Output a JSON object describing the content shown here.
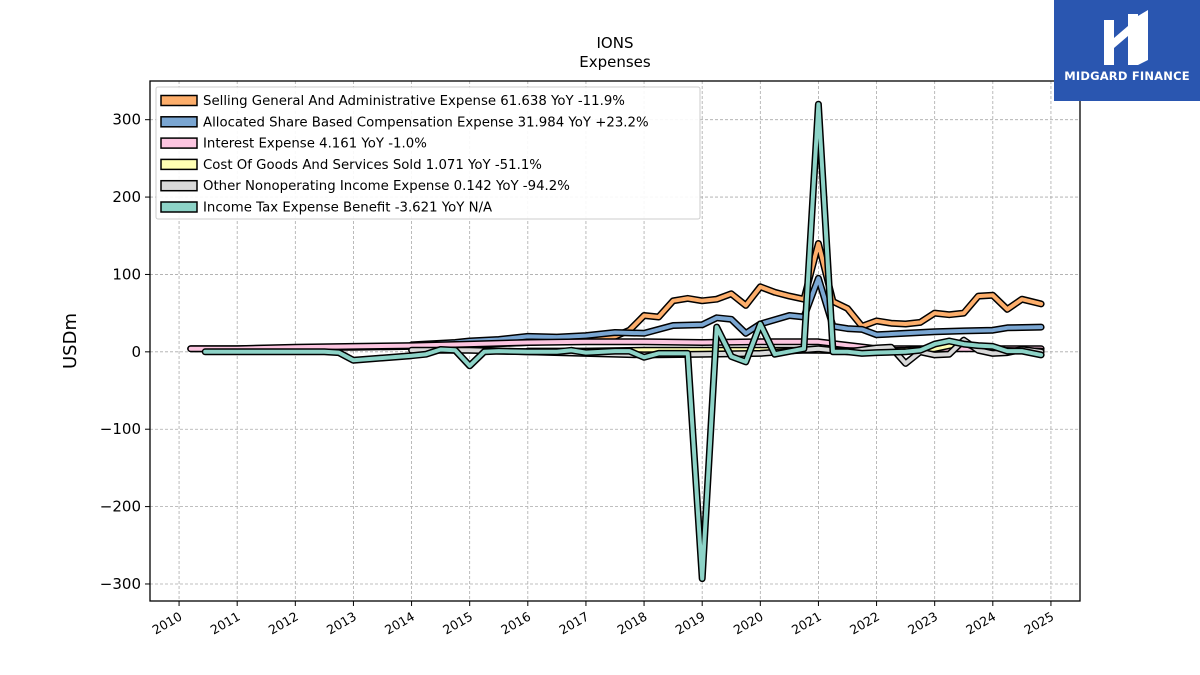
{
  "title": "IONS",
  "subtitle": "Expenses",
  "logo": {
    "text": "MIDGARD FINANCE",
    "color": "#2a56b0"
  },
  "chart_data": {
    "type": "line",
    "xlabel": "",
    "ylabel": "USDm",
    "xlim": [
      2009.5,
      2025.5
    ],
    "ylim": [
      -322,
      350
    ],
    "x_ticks": [
      "2010",
      "2011",
      "2012",
      "2013",
      "2014",
      "2015",
      "2016",
      "2017",
      "2018",
      "2019",
      "2020",
      "2021",
      "2022",
      "2023",
      "2024",
      "2025"
    ],
    "y_ticks": [
      -300,
      -200,
      -100,
      0,
      100,
      200,
      300
    ],
    "y_tick_labels": [
      "−300",
      "−200",
      "−100",
      "0",
      "100",
      "200",
      "300"
    ],
    "grid": true,
    "legend_position": "top-left",
    "series": [
      {
        "name": "Selling General And Administrative Expense",
        "legend": "Selling General And Administrative Expense  61.638 YoY -11.9%",
        "color": "#fdae6b",
        "points": [
          [
            2010.2,
            4
          ],
          [
            2011,
            4
          ],
          [
            2012,
            5
          ],
          [
            2012.75,
            6
          ],
          [
            2013,
            6
          ],
          [
            2014,
            7
          ],
          [
            2015,
            9
          ],
          [
            2016,
            12
          ],
          [
            2017,
            15
          ],
          [
            2017.5,
            20
          ],
          [
            2017.75,
            28
          ],
          [
            2018,
            47
          ],
          [
            2018.25,
            45
          ],
          [
            2018.5,
            66
          ],
          [
            2018.75,
            69
          ],
          [
            2019,
            66
          ],
          [
            2019.25,
            68
          ],
          [
            2019.5,
            75
          ],
          [
            2019.75,
            60
          ],
          [
            2020,
            84
          ],
          [
            2020.25,
            77
          ],
          [
            2020.5,
            72
          ],
          [
            2020.75,
            68
          ],
          [
            2021,
            140
          ],
          [
            2021.25,
            65
          ],
          [
            2021.5,
            56
          ],
          [
            2021.75,
            33
          ],
          [
            2022,
            40
          ],
          [
            2022.25,
            37
          ],
          [
            2022.5,
            36
          ],
          [
            2022.75,
            38
          ],
          [
            2023,
            50
          ],
          [
            2023.25,
            48
          ],
          [
            2023.5,
            50
          ],
          [
            2023.75,
            72
          ],
          [
            2024,
            73
          ],
          [
            2024.25,
            55
          ],
          [
            2024.5,
            68
          ],
          [
            2024.83,
            62
          ]
        ]
      },
      {
        "name": "Allocated Share Based Compensation Expense",
        "legend": "Allocated Share Based Compensation Expense  31.984 YoY +23.2%",
        "color": "#7aa6d2",
        "points": [
          [
            2014,
            9
          ],
          [
            2014.75,
            12
          ],
          [
            2015,
            14
          ],
          [
            2015.5,
            16
          ],
          [
            2016,
            20
          ],
          [
            2016.5,
            19
          ],
          [
            2017,
            21
          ],
          [
            2017.5,
            25
          ],
          [
            2018,
            24
          ],
          [
            2018.5,
            34
          ],
          [
            2019,
            35
          ],
          [
            2019.25,
            44
          ],
          [
            2019.5,
            42
          ],
          [
            2019.75,
            24
          ],
          [
            2020,
            36
          ],
          [
            2020.5,
            47
          ],
          [
            2020.75,
            45
          ],
          [
            2021,
            95
          ],
          [
            2021.25,
            33
          ],
          [
            2021.5,
            30
          ],
          [
            2021.75,
            29
          ],
          [
            2022,
            22
          ],
          [
            2022.5,
            24
          ],
          [
            2022.75,
            25
          ],
          [
            2023,
            26
          ],
          [
            2023.5,
            27
          ],
          [
            2024,
            28
          ],
          [
            2024.25,
            31
          ],
          [
            2024.83,
            32
          ]
        ]
      },
      {
        "name": "Interest Expense",
        "legend": "Interest Expense  4.161 YoY -1.0%",
        "color": "#fcc5e0",
        "points": [
          [
            2010.2,
            4
          ],
          [
            2011,
            4
          ],
          [
            2012,
            6
          ],
          [
            2013,
            7
          ],
          [
            2014,
            8
          ],
          [
            2015,
            10
          ],
          [
            2016,
            12
          ],
          [
            2017,
            13
          ],
          [
            2018,
            13
          ],
          [
            2019,
            12
          ],
          [
            2020,
            13
          ],
          [
            2021,
            13
          ],
          [
            2022,
            4
          ],
          [
            2023,
            4
          ],
          [
            2024,
            4
          ],
          [
            2024.83,
            4
          ]
        ]
      },
      {
        "name": "Cost Of Goods And Services Sold",
        "legend": "Cost Of Goods And Services Sold  1.071 YoY -51.1%",
        "color": "#ffffb3",
        "points": [
          [
            2016,
            1
          ],
          [
            2017,
            1
          ],
          [
            2018,
            2
          ],
          [
            2019,
            2
          ],
          [
            2020,
            2
          ],
          [
            2021,
            2
          ],
          [
            2022,
            1
          ],
          [
            2022.5,
            2
          ],
          [
            2023,
            4
          ],
          [
            2023.5,
            12
          ],
          [
            2023.75,
            4
          ],
          [
            2024,
            2
          ],
          [
            2024.83,
            1
          ]
        ]
      },
      {
        "name": "Other Nonoperating Income Expense",
        "legend": "Other Nonoperating Income Expense  0.142 YoY -94.2%",
        "color": "#d9d9d9",
        "points": [
          [
            2014,
            2
          ],
          [
            2015,
            2
          ],
          [
            2016,
            0
          ],
          [
            2017,
            -2
          ],
          [
            2018,
            -4
          ],
          [
            2019,
            -3
          ],
          [
            2020,
            -2
          ],
          [
            2021,
            4
          ],
          [
            2021.5,
            0
          ],
          [
            2022,
            5
          ],
          [
            2022.25,
            6
          ],
          [
            2022.5,
            -15
          ],
          [
            2022.75,
            0
          ],
          [
            2023,
            -4
          ],
          [
            2023.25,
            -3
          ],
          [
            2023.5,
            15
          ],
          [
            2023.75,
            2
          ],
          [
            2024,
            -2
          ],
          [
            2024.25,
            -1
          ],
          [
            2024.5,
            3
          ],
          [
            2024.83,
            0
          ]
        ]
      },
      {
        "name": "Income Tax Expense Benefit",
        "legend": "Income Tax Expense Benefit  -3.621 YoY N/A",
        "color": "#8dd3c7",
        "points": [
          [
            2010.45,
            0
          ],
          [
            2011,
            0
          ],
          [
            2012,
            0
          ],
          [
            2012.5,
            0
          ],
          [
            2012.75,
            -1
          ],
          [
            2013,
            -11
          ],
          [
            2014,
            -5
          ],
          [
            2014.25,
            -3
          ],
          [
            2014.5,
            3
          ],
          [
            2014.75,
            2
          ],
          [
            2015,
            -18
          ],
          [
            2015.25,
            0
          ],
          [
            2015.5,
            1
          ],
          [
            2016,
            0
          ],
          [
            2016.5,
            0
          ],
          [
            2016.75,
            2
          ],
          [
            2017,
            -1
          ],
          [
            2017.5,
            1
          ],
          [
            2017.75,
            1
          ],
          [
            2018,
            -7
          ],
          [
            2018.25,
            -2
          ],
          [
            2018.75,
            -2
          ],
          [
            2019,
            -293
          ],
          [
            2019.25,
            32
          ],
          [
            2019.5,
            -6
          ],
          [
            2019.75,
            -13
          ],
          [
            2020,
            36
          ],
          [
            2020.25,
            -3
          ],
          [
            2020.75,
            4
          ],
          [
            2021,
            320
          ],
          [
            2021.25,
            0
          ],
          [
            2021.5,
            0
          ],
          [
            2021.75,
            -2
          ],
          [
            2022,
            -1
          ],
          [
            2022.5,
            0
          ],
          [
            2022.75,
            2
          ],
          [
            2023,
            10
          ],
          [
            2023.25,
            14
          ],
          [
            2023.5,
            10
          ],
          [
            2023.75,
            8
          ],
          [
            2024,
            7
          ],
          [
            2024.25,
            1
          ],
          [
            2024.5,
            1
          ],
          [
            2024.83,
            -4
          ]
        ]
      }
    ]
  }
}
